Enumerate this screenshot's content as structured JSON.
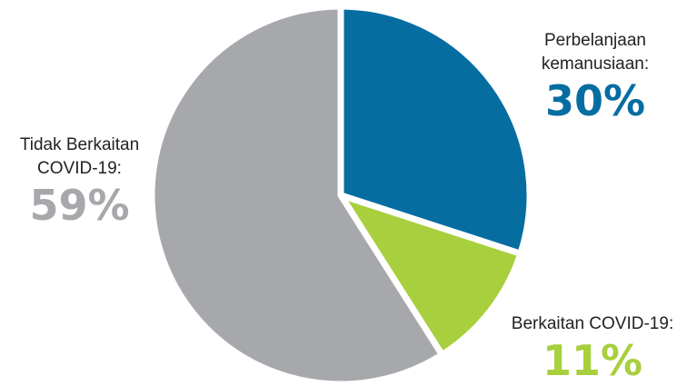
{
  "chart_data": {
    "type": "pie",
    "title": "",
    "slices": [
      {
        "label": "Perbelanjaan\nkemanusiaan:",
        "value": 30,
        "display": "30%",
        "color": "#066da1"
      },
      {
        "label": "Berkaitan COVID-19:",
        "value": 11,
        "display": "11%",
        "color": "#a8cf3d"
      },
      {
        "label": "Tidak Berkaitan\nCOVID-19:",
        "value": 59,
        "display": "59%",
        "color": "#a7a8ab"
      }
    ],
    "start_angle_deg": 0,
    "direction": "clockwise",
    "separator_color": "#ffffff"
  }
}
